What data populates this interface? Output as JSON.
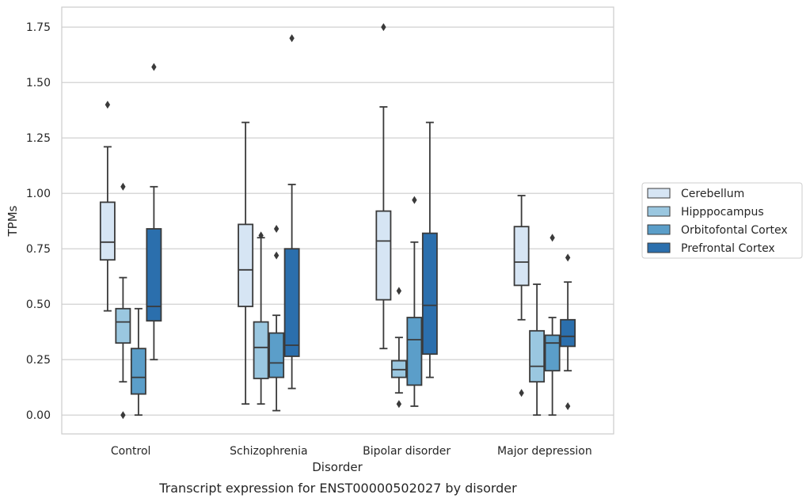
{
  "chart_data": {
    "type": "box",
    "title": "",
    "caption": "Transcript expression for ENST00000502027 by disorder",
    "xlabel": "Disorder",
    "ylabel": "TPMs",
    "ylim": [
      -0.085,
      1.84
    ],
    "yticks": [
      "0.00",
      "0.25",
      "0.50",
      "0.75",
      "1.00",
      "1.25",
      "1.50",
      "1.75"
    ],
    "ytick_values": [
      0,
      0.25,
      0.5,
      0.75,
      1.0,
      1.25,
      1.5,
      1.75
    ],
    "grid": "horizontal",
    "legend_position": "right",
    "categories": [
      "Control",
      "Schizophrenia",
      "Bipolar disorder",
      "Major depression"
    ],
    "series": [
      {
        "name": "Cerebellum",
        "color": "#d6e5f4",
        "boxes": [
          {
            "whisker_low": 0.47,
            "q1": 0.7,
            "median": 0.78,
            "q3": 0.96,
            "whisker_high": 1.21,
            "outliers": [
              1.4
            ]
          },
          {
            "whisker_low": 0.05,
            "q1": 0.49,
            "median": 0.655,
            "q3": 0.86,
            "whisker_high": 1.32,
            "outliers": []
          },
          {
            "whisker_low": 0.3,
            "q1": 0.52,
            "median": 0.785,
            "q3": 0.92,
            "whisker_high": 1.39,
            "outliers": [
              1.75
            ]
          },
          {
            "whisker_low": 0.43,
            "q1": 0.585,
            "median": 0.69,
            "q3": 0.85,
            "whisker_high": 0.99,
            "outliers": [
              0.1
            ]
          }
        ]
      },
      {
        "name": "Hipppocampus",
        "color": "#9ac7e0",
        "boxes": [
          {
            "whisker_low": 0.15,
            "q1": 0.325,
            "median": 0.42,
            "q3": 0.48,
            "whisker_high": 0.62,
            "outliers": [
              0.0,
              1.03
            ]
          },
          {
            "whisker_low": 0.05,
            "q1": 0.165,
            "median": 0.305,
            "q3": 0.42,
            "whisker_high": 0.8,
            "outliers": [
              0.81
            ]
          },
          {
            "whisker_low": 0.1,
            "q1": 0.17,
            "median": 0.205,
            "q3": 0.245,
            "whisker_high": 0.35,
            "outliers": [
              0.05,
              0.56
            ]
          },
          {
            "whisker_low": 0.0,
            "q1": 0.15,
            "median": 0.22,
            "q3": 0.38,
            "whisker_high": 0.59,
            "outliers": []
          }
        ]
      },
      {
        "name": "Orbitofontal Cortex",
        "color": "#5b9ec9",
        "boxes": [
          {
            "whisker_low": 0.0,
            "q1": 0.095,
            "median": 0.17,
            "q3": 0.3,
            "whisker_high": 0.48,
            "outliers": []
          },
          {
            "whisker_low": 0.02,
            "q1": 0.17,
            "median": 0.235,
            "q3": 0.37,
            "whisker_high": 0.45,
            "outliers": [
              0.72,
              0.84
            ]
          },
          {
            "whisker_low": 0.04,
            "q1": 0.135,
            "median": 0.34,
            "q3": 0.44,
            "whisker_high": 0.78,
            "outliers": [
              0.97
            ]
          },
          {
            "whisker_low": 0.0,
            "q1": 0.2,
            "median": 0.325,
            "q3": 0.36,
            "whisker_high": 0.44,
            "outliers": [
              0.8
            ]
          }
        ]
      },
      {
        "name": "Prefrontal Cortex",
        "color": "#2b6fad",
        "boxes": [
          {
            "whisker_low": 0.25,
            "q1": 0.425,
            "median": 0.49,
            "q3": 0.84,
            "whisker_high": 1.03,
            "outliers": [
              1.57
            ]
          },
          {
            "whisker_low": 0.12,
            "q1": 0.265,
            "median": 0.315,
            "q3": 0.75,
            "whisker_high": 1.04,
            "outliers": [
              1.7
            ]
          },
          {
            "whisker_low": 0.17,
            "q1": 0.275,
            "median": 0.495,
            "q3": 0.82,
            "whisker_high": 1.32,
            "outliers": []
          },
          {
            "whisker_low": 0.2,
            "q1": 0.31,
            "median": 0.355,
            "q3": 0.43,
            "whisker_high": 0.6,
            "outliers": [
              0.04,
              0.71
            ]
          }
        ]
      }
    ]
  }
}
